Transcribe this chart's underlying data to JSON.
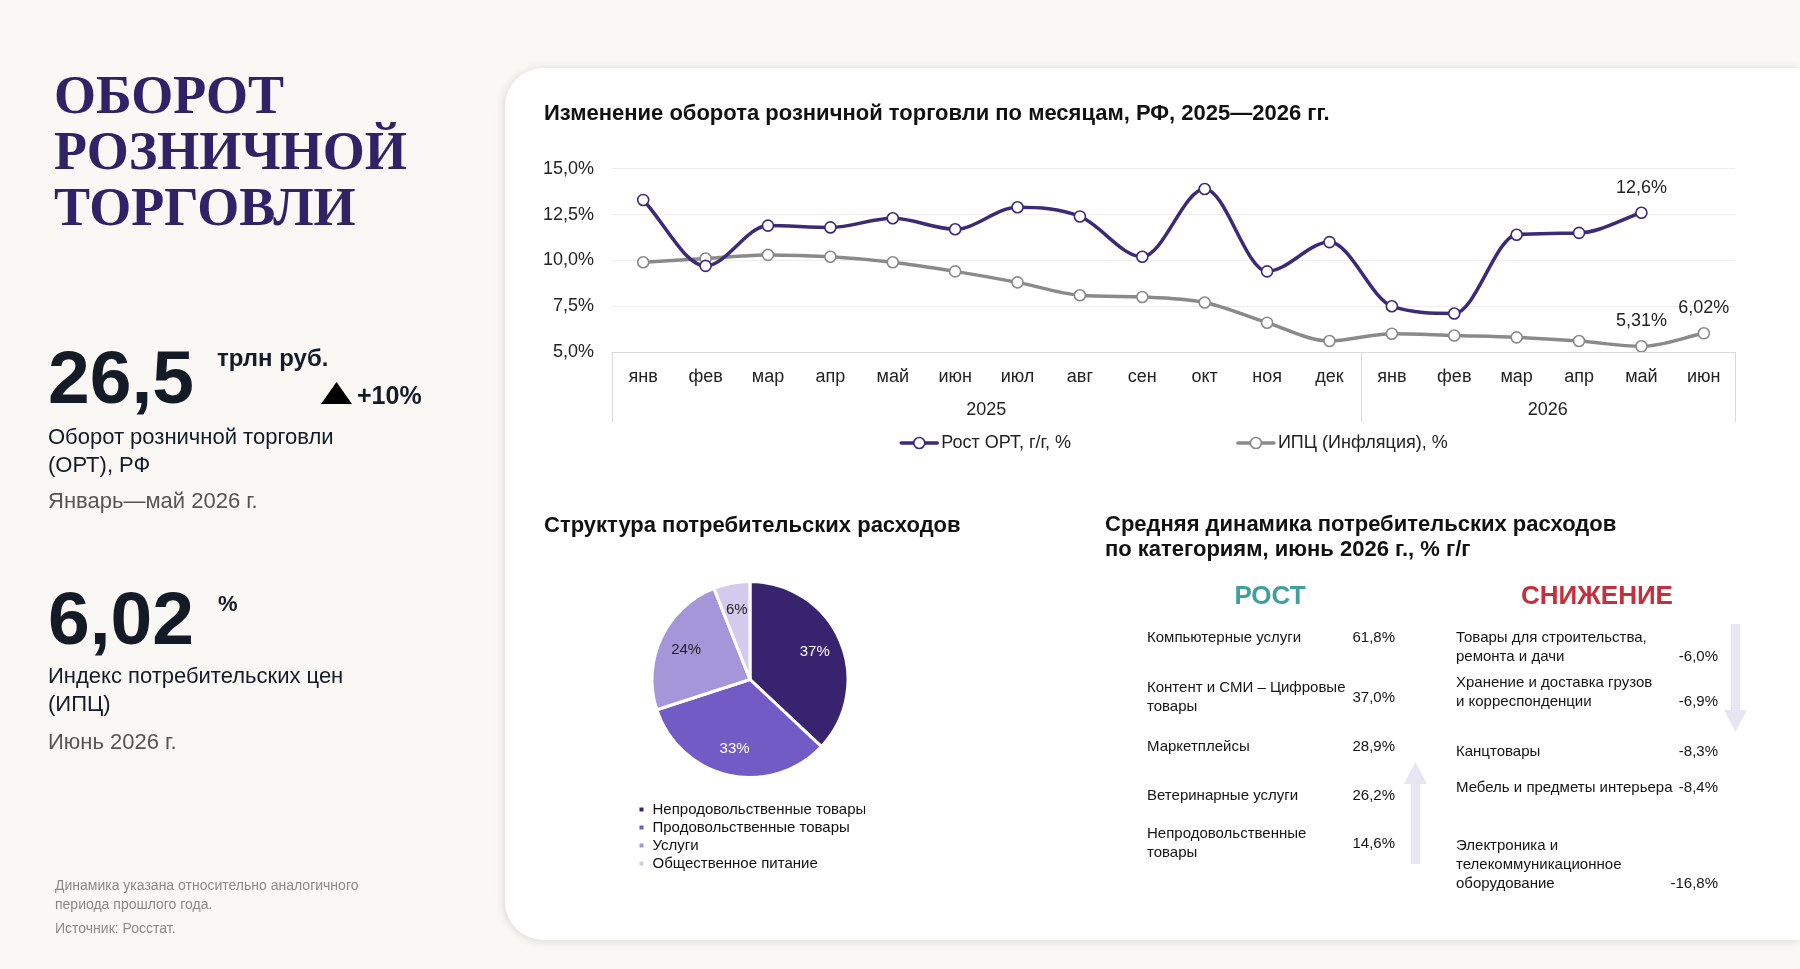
{
  "chart_data": [
    {
      "type": "other",
      "title": "ОБОРОТ РОЗНИЧНОЙ ТОРГОВЛИ",
      "annotations": [
        "26,5",
        "трлн руб.",
        "+10%",
        "Оборот розничной торговли (ОРТ), РФ",
        "Январь—май 2026 г.",
        "6,02",
        "%",
        "Индекс потребительских цен (ИПЦ)",
        "Июнь 2026 г.",
        "Динамика указана относительно аналогичного периода прошлого года.",
        "Источник: Росстат."
      ]
    },
    {
      "type": "line",
      "title": "Изменение оборота розничной торговли по месяцам, РФ, 2025—2026 гг.",
      "categories": [
        "янв",
        "фев",
        "мар",
        "апр",
        "май",
        "июн",
        "июл",
        "авг",
        "сен",
        "окт",
        "ноя",
        "дек",
        "янв",
        "фев",
        "мар",
        "апр",
        "май",
        "июн"
      ],
      "ylim": [
        5,
        15
      ],
      "yticks": [
        {
          "value": 5,
          "label": "5,0%"
        },
        {
          "value": 7.5,
          "label": "7,5%"
        },
        {
          "value": 10,
          "label": "10,0%"
        },
        {
          "value": 12.5,
          "label": "12,5%"
        },
        {
          "value": 15,
          "label": "15,0%"
        }
      ],
      "grid": "y",
      "legend": "bottom",
      "marker": "circle",
      "annotations": [
        "2025",
        "2026"
      ],
      "series": [
        {
          "name": "Рост ОРТ, г/г, %",
          "color": "#3a2a78",
          "values": [
            13.3,
            9.7,
            11.9,
            11.8,
            12.3,
            11.7,
            12.9,
            12.4,
            10.2,
            13.9,
            9.4,
            11.0,
            7.5,
            7.1,
            11.4,
            11.5,
            12.6,
            null
          ],
          "value_labels": [
            null,
            null,
            null,
            null,
            null,
            null,
            null,
            null,
            null,
            null,
            null,
            null,
            null,
            null,
            null,
            null,
            "12,6%",
            null
          ]
        },
        {
          "name": "ИПЦ (Инфляция), %",
          "color": "#8a8a8a",
          "values": [
            9.9,
            10.1,
            10.3,
            10.2,
            9.9,
            9.4,
            8.8,
            8.1,
            8.0,
            7.7,
            6.6,
            5.6,
            6.0,
            5.9,
            5.8,
            5.6,
            5.31,
            6.02
          ],
          "value_labels": [
            null,
            null,
            null,
            null,
            null,
            null,
            null,
            null,
            null,
            null,
            null,
            null,
            null,
            null,
            null,
            null,
            "5,31%",
            "6,02%"
          ]
        }
      ]
    },
    {
      "type": "pie",
      "title": "Структура потребительских расходов",
      "categories": [
        "Непродовольственные товары",
        "Продовольственные товары",
        "Услуги",
        "Общественное питание"
      ],
      "values": [
        37,
        33,
        24,
        6
      ],
      "colors": [
        "#38246e",
        "#735bc6",
        "#a596da",
        "#d3cbed"
      ],
      "value_labels": [
        "37%",
        "33%",
        "24%",
        "6%"
      ],
      "legend": "bottom"
    },
    {
      "type": "other",
      "title": "Средняя динамика потребительских расходов по категориям, июнь 2026 г., % г/г",
      "categories": [
        "Компьютерные услуги",
        "Контент и СМИ – Цифровые товары",
        "Маркетплейсы",
        "Ветеринарные услуги",
        "Непродовольственные товары",
        "Товары для строительства, ремонта и дачи",
        "Хранение и доставка грузов и корреспонденции",
        "Канцтовары",
        "Мебель и предметы интерьера",
        "Электроника и телекоммуникационное оборудование"
      ],
      "series": [
        {
          "name": "РОСТ",
          "color": "#3fa09e",
          "values": [
            61.8,
            37.0,
            28.9,
            26.2,
            14.6,
            null,
            null,
            null,
            null,
            null
          ],
          "value_labels": [
            "61,8%",
            "37,0%",
            "28,9%",
            "26,2%",
            "14,6%",
            null,
            null,
            null,
            null,
            null
          ]
        },
        {
          "name": "СНИЖЕНИЕ",
          "color": "#c5303c",
          "values": [
            null,
            null,
            null,
            null,
            null,
            -6.0,
            -6.9,
            -8.3,
            -8.4,
            -16.8
          ],
          "value_labels": [
            null,
            null,
            null,
            null,
            null,
            "-6,0%",
            "-6,9%",
            "-8,3%",
            "-8,4%",
            "-16,8%"
          ]
        }
      ]
    }
  ]
}
